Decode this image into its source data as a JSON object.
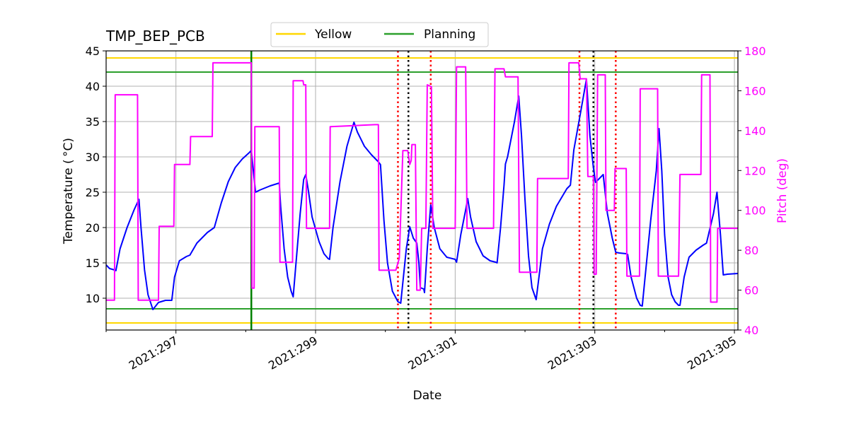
{
  "chart_data": {
    "type": "line",
    "title": "TMP_BEP_PCB",
    "xlabel": "Date",
    "ylabel": "Temperature ($^\\circ$C)",
    "ylabel_display": "Temperature ( °C)",
    "y2label": "Pitch (deg)",
    "xlim": [
      296.0,
      305.05
    ],
    "ylim": [
      5.5,
      45
    ],
    "y2lim": [
      40,
      180
    ],
    "x_ticks": [
      {
        "value": 297,
        "label": "2021:297"
      },
      {
        "value": 299,
        "label": "2021:299"
      },
      {
        "value": 301,
        "label": "2021:301"
      },
      {
        "value": 303,
        "label": "2021:303"
      },
      {
        "value": 305,
        "label": "2021:305"
      }
    ],
    "y_ticks": [
      10,
      15,
      20,
      25,
      30,
      35,
      40,
      45
    ],
    "y2_ticks": [
      40,
      60,
      80,
      100,
      120,
      140,
      160,
      180
    ],
    "grid": true,
    "legend": {
      "placement": "top-center",
      "entries": [
        {
          "label": "Yellow",
          "color": "#ffd700"
        },
        {
          "label": "Planning",
          "color": "#2ca02c"
        }
      ]
    },
    "limits": [
      {
        "name": "Yellow",
        "value": 44,
        "color": "#ffd700"
      },
      {
        "name": "Yellow",
        "value": 6.5,
        "color": "#ffd700"
      },
      {
        "name": "Planning",
        "value": 42,
        "color": "#2ca02c"
      },
      {
        "name": "Planning",
        "value": 8.5,
        "color": "#2ca02c"
      }
    ],
    "vlines": [
      {
        "x": 298.08,
        "color": "#008000",
        "style": "solid"
      },
      {
        "x": 300.18,
        "color": "#ff0000",
        "style": "dotted"
      },
      {
        "x": 300.33,
        "color": "#000000",
        "style": "dotted"
      },
      {
        "x": 300.65,
        "color": "#ff0000",
        "style": "dotted"
      },
      {
        "x": 302.78,
        "color": "#ff0000",
        "style": "dotted"
      },
      {
        "x": 302.98,
        "color": "#000000",
        "style": "dotted"
      },
      {
        "x": 303.3,
        "color": "#ff0000",
        "style": "dotted"
      }
    ],
    "series": [
      {
        "axis": "left",
        "color": "#0000ff",
        "points": [
          [
            296.0,
            14.7
          ],
          [
            296.05,
            14.2
          ],
          [
            296.12,
            14.0
          ],
          [
            296.14,
            13.9
          ],
          [
            296.2,
            17.0
          ],
          [
            296.3,
            20.0
          ],
          [
            296.4,
            22.5
          ],
          [
            296.47,
            24.0
          ],
          [
            296.5,
            20.0
          ],
          [
            296.55,
            14.0
          ],
          [
            296.6,
            10.5
          ],
          [
            296.67,
            8.4
          ],
          [
            296.75,
            9.4
          ],
          [
            296.85,
            9.7
          ],
          [
            296.94,
            9.7
          ],
          [
            296.98,
            13.0
          ],
          [
            297.05,
            15.3
          ],
          [
            297.15,
            15.9
          ],
          [
            297.2,
            16.1
          ],
          [
            297.3,
            17.8
          ],
          [
            297.45,
            19.3
          ],
          [
            297.55,
            20.0
          ],
          [
            297.65,
            23.5
          ],
          [
            297.75,
            26.5
          ],
          [
            297.85,
            28.5
          ],
          [
            297.95,
            29.7
          ],
          [
            298.05,
            30.6
          ],
          [
            298.08,
            30.9
          ],
          [
            298.14,
            25.0
          ],
          [
            298.2,
            25.3
          ],
          [
            298.35,
            25.9
          ],
          [
            298.48,
            26.3
          ],
          [
            298.5,
            23.0
          ],
          [
            298.55,
            17.0
          ],
          [
            298.6,
            13.0
          ],
          [
            298.65,
            11.0
          ],
          [
            298.68,
            10.2
          ],
          [
            298.72,
            15.0
          ],
          [
            298.78,
            22.0
          ],
          [
            298.83,
            26.8
          ],
          [
            298.86,
            27.5
          ],
          [
            298.9,
            25.0
          ],
          [
            298.95,
            21.5
          ],
          [
            299.05,
            18.0
          ],
          [
            299.12,
            16.3
          ],
          [
            299.18,
            15.6
          ],
          [
            299.2,
            15.5
          ],
          [
            299.25,
            20.0
          ],
          [
            299.35,
            26.5
          ],
          [
            299.45,
            31.5
          ],
          [
            299.55,
            34.9
          ],
          [
            299.6,
            33.5
          ],
          [
            299.7,
            31.5
          ],
          [
            299.8,
            30.3
          ],
          [
            299.9,
            29.3
          ],
          [
            299.93,
            28.9
          ],
          [
            299.98,
            21.0
          ],
          [
            300.03,
            15.0
          ],
          [
            300.1,
            11.0
          ],
          [
            300.18,
            9.5
          ],
          [
            300.22,
            9.3
          ],
          [
            300.3,
            17.0
          ],
          [
            300.35,
            20.1
          ],
          [
            300.4,
            18.5
          ],
          [
            300.45,
            17.8
          ],
          [
            300.48,
            15.0
          ],
          [
            300.5,
            11.5
          ],
          [
            300.55,
            11.3
          ],
          [
            300.56,
            10.8
          ],
          [
            300.6,
            17.0
          ],
          [
            300.65,
            23.2
          ],
          [
            300.7,
            20.0
          ],
          [
            300.78,
            17.0
          ],
          [
            300.88,
            15.8
          ],
          [
            301.0,
            15.5
          ],
          [
            301.02,
            15.1
          ],
          [
            301.08,
            19.0
          ],
          [
            301.15,
            22.5
          ],
          [
            301.18,
            24.1
          ],
          [
            301.22,
            21.5
          ],
          [
            301.3,
            18.0
          ],
          [
            301.4,
            16.0
          ],
          [
            301.5,
            15.3
          ],
          [
            301.58,
            15.1
          ],
          [
            301.6,
            15.0
          ],
          [
            301.65,
            20.0
          ],
          [
            301.7,
            26.0
          ],
          [
            301.72,
            29.0
          ],
          [
            301.75,
            30.0
          ],
          [
            301.85,
            35.0
          ],
          [
            301.91,
            38.6
          ],
          [
            301.95,
            33.0
          ],
          [
            302.0,
            24.0
          ],
          [
            302.05,
            16.0
          ],
          [
            302.1,
            11.5
          ],
          [
            302.16,
            9.8
          ],
          [
            302.2,
            13.0
          ],
          [
            302.25,
            17.0
          ],
          [
            302.35,
            20.5
          ],
          [
            302.45,
            23.0
          ],
          [
            302.6,
            25.5
          ],
          [
            302.65,
            26.0
          ],
          [
            302.7,
            31.0
          ],
          [
            302.8,
            36.5
          ],
          [
            302.88,
            41.0
          ],
          [
            302.93,
            33.0
          ],
          [
            302.98,
            28.5
          ],
          [
            303.01,
            26.4
          ],
          [
            303.05,
            26.8
          ],
          [
            303.12,
            27.5
          ],
          [
            303.18,
            22.0
          ],
          [
            303.25,
            18.5
          ],
          [
            303.3,
            16.5
          ],
          [
            303.35,
            16.4
          ],
          [
            303.45,
            16.3
          ],
          [
            303.47,
            16.2
          ],
          [
            303.52,
            13.0
          ],
          [
            303.6,
            10.0
          ],
          [
            303.65,
            9.0
          ],
          [
            303.68,
            8.9
          ],
          [
            303.72,
            13.0
          ],
          [
            303.8,
            21.0
          ],
          [
            303.88,
            28.0
          ],
          [
            303.92,
            34.0
          ],
          [
            303.96,
            28.0
          ],
          [
            304.0,
            19.0
          ],
          [
            304.05,
            13.0
          ],
          [
            304.1,
            10.5
          ],
          [
            304.15,
            9.5
          ],
          [
            304.2,
            9.0
          ],
          [
            304.22,
            9.0
          ],
          [
            304.28,
            13.0
          ],
          [
            304.35,
            15.8
          ],
          [
            304.45,
            16.8
          ],
          [
            304.55,
            17.5
          ],
          [
            304.6,
            17.8
          ],
          [
            304.7,
            22.0
          ],
          [
            304.75,
            25.0
          ],
          [
            304.8,
            19.0
          ],
          [
            304.84,
            13.3
          ],
          [
            304.9,
            13.4
          ],
          [
            305.05,
            13.5
          ]
        ]
      },
      {
        "axis": "right",
        "color": "#ff00ff",
        "points": [
          [
            296.0,
            55
          ],
          [
            296.1,
            55
          ],
          [
            296.12,
            55
          ],
          [
            296.13,
            158
          ],
          [
            296.45,
            158
          ],
          [
            296.46,
            55
          ],
          [
            296.75,
            55
          ],
          [
            296.76,
            92
          ],
          [
            296.97,
            92
          ],
          [
            296.98,
            123
          ],
          [
            297.2,
            123
          ],
          [
            297.21,
            137
          ],
          [
            297.52,
            137
          ],
          [
            297.53,
            174
          ],
          [
            298.08,
            174
          ],
          [
            298.09,
            61
          ],
          [
            298.12,
            61
          ],
          [
            298.13,
            142
          ],
          [
            298.48,
            142
          ],
          [
            298.49,
            74
          ],
          [
            298.67,
            74
          ],
          [
            298.68,
            165
          ],
          [
            298.82,
            165
          ],
          [
            298.83,
            163
          ],
          [
            298.86,
            163
          ],
          [
            298.87,
            91
          ],
          [
            299.2,
            91
          ],
          [
            299.21,
            142
          ],
          [
            299.85,
            143
          ],
          [
            299.9,
            143
          ],
          [
            299.91,
            70
          ],
          [
            300.15,
            70
          ],
          [
            300.2,
            76
          ],
          [
            300.25,
            130
          ],
          [
            300.32,
            130
          ],
          [
            300.35,
            123
          ],
          [
            300.37,
            125
          ],
          [
            300.38,
            133
          ],
          [
            300.43,
            133
          ],
          [
            300.45,
            60
          ],
          [
            300.5,
            60
          ],
          [
            300.52,
            91
          ],
          [
            300.58,
            91
          ],
          [
            300.6,
            163
          ],
          [
            300.66,
            162
          ],
          [
            300.68,
            91
          ],
          [
            301.0,
            91
          ],
          [
            301.02,
            172
          ],
          [
            301.15,
            172
          ],
          [
            301.17,
            91
          ],
          [
            301.55,
            91
          ],
          [
            301.57,
            171
          ],
          [
            301.7,
            171
          ],
          [
            301.72,
            167
          ],
          [
            301.9,
            167
          ],
          [
            301.92,
            69
          ],
          [
            302.17,
            69
          ],
          [
            302.18,
            116
          ],
          [
            302.62,
            116
          ],
          [
            302.63,
            174
          ],
          [
            302.77,
            174
          ],
          [
            302.79,
            166
          ],
          [
            302.88,
            166
          ],
          [
            302.9,
            117
          ],
          [
            302.98,
            117
          ],
          [
            302.99,
            68
          ],
          [
            303.02,
            68
          ],
          [
            303.04,
            168
          ],
          [
            303.15,
            168
          ],
          [
            303.16,
            100
          ],
          [
            303.28,
            100
          ],
          [
            303.29,
            121
          ],
          [
            303.45,
            121
          ],
          [
            303.46,
            67
          ],
          [
            303.64,
            67
          ],
          [
            303.65,
            161
          ],
          [
            303.9,
            161
          ],
          [
            303.91,
            67
          ],
          [
            304.2,
            67
          ],
          [
            304.22,
            118
          ],
          [
            304.52,
            118
          ],
          [
            304.53,
            168
          ],
          [
            304.65,
            168
          ],
          [
            304.66,
            54
          ],
          [
            304.75,
            54
          ],
          [
            304.76,
            91
          ],
          [
            305.05,
            91
          ]
        ]
      }
    ]
  }
}
